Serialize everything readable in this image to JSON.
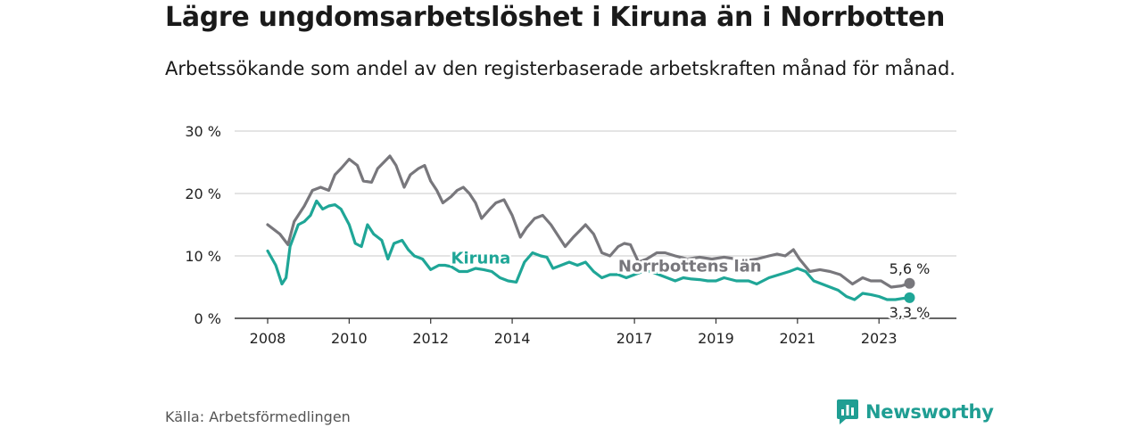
{
  "header": {
    "title": "Lägre ungdomsarbetslöshet i Kiruna än i Norrbotten",
    "subtitle": "Arbetssökande som andel av den registerbaserade arbetskraften månad för månad."
  },
  "footer": {
    "source": "Källa: Arbetsförmedlingen",
    "brand": "Newsworthy"
  },
  "colors": {
    "kiruna": "#1fa697",
    "norrbotten": "#78777c",
    "grid": "#d4d4d4",
    "axis": "#333333",
    "brand": "#1f9e93"
  },
  "chart_data": {
    "type": "line",
    "title": "Lägre ungdomsarbetslöshet i Kiruna än i Norrbotten",
    "subtitle": "Arbetssökande som andel av den registerbaserade arbetskraften månad för månad.",
    "xlabel": "",
    "ylabel": "",
    "xlim": [
      2008,
      2024.9
    ],
    "ylim": [
      0,
      30
    ],
    "y_ticks": [
      0,
      10,
      20,
      30
    ],
    "y_tick_labels": [
      "0 %",
      "10 %",
      "20 %",
      "30 %"
    ],
    "x_ticks": [
      2008,
      2010,
      2012,
      2014,
      2017,
      2019,
      2021,
      2023
    ],
    "x_tick_labels": [
      "2008",
      "2010",
      "2012",
      "2014",
      "2017",
      "2019",
      "2021",
      "2023"
    ],
    "grid": true,
    "series": [
      {
        "name": "Norrbottens län",
        "label": "Norrbottens län",
        "end_label": "5,6 %",
        "x": [
          2008.0,
          2008.3,
          2008.5,
          2008.65,
          2008.9,
          2009.1,
          2009.3,
          2009.5,
          2009.65,
          2009.8,
          2010.0,
          2010.2,
          2010.35,
          2010.55,
          2010.7,
          2010.85,
          2011.0,
          2011.15,
          2011.35,
          2011.5,
          2011.7,
          2011.85,
          2012.0,
          2012.15,
          2012.3,
          2012.5,
          2012.65,
          2012.8,
          2012.95,
          2013.1,
          2013.25,
          2013.45,
          2013.6,
          2013.8,
          2014.0,
          2014.2,
          2014.35,
          2014.55,
          2014.75,
          2014.95,
          2015.15,
          2015.3,
          2015.5,
          2015.65,
          2015.8,
          2016.0,
          2016.2,
          2016.4,
          2016.6,
          2016.75,
          2016.9,
          2017.1,
          2017.3,
          2017.55,
          2017.75,
          2018.0,
          2018.3,
          2018.6,
          2018.9,
          2019.2,
          2019.5,
          2019.8,
          2020.0,
          2020.3,
          2020.5,
          2020.7,
          2020.9,
          2021.05,
          2021.3,
          2021.55,
          2021.8,
          2022.05,
          2022.35,
          2022.6,
          2022.8,
          2023.05,
          2023.3,
          2023.55,
          2023.75
        ],
        "y": [
          15.0,
          13.5,
          11.8,
          15.5,
          18.0,
          20.5,
          21.0,
          20.5,
          23.0,
          24.0,
          25.5,
          24.5,
          22.0,
          21.8,
          24.0,
          25.0,
          26.0,
          24.5,
          21.0,
          23.0,
          24.0,
          24.5,
          22.0,
          20.5,
          18.5,
          19.5,
          20.5,
          21.0,
          20.0,
          18.5,
          16.0,
          17.5,
          18.5,
          19.0,
          16.5,
          13.0,
          14.5,
          16.0,
          16.5,
          15.0,
          13.0,
          11.5,
          13.0,
          14.0,
          15.0,
          13.5,
          10.5,
          10.0,
          11.5,
          12.0,
          11.8,
          9.0,
          9.5,
          10.5,
          10.5,
          10.0,
          9.5,
          9.8,
          9.5,
          9.8,
          9.5,
          9.3,
          9.5,
          10.0,
          10.3,
          10.0,
          11.0,
          9.5,
          7.5,
          7.8,
          7.5,
          7.0,
          5.5,
          6.5,
          6.0,
          6.0,
          5.0,
          5.2,
          5.6
        ]
      },
      {
        "name": "Kiruna",
        "label": "Kiruna",
        "end_label": "3,3 %",
        "x": [
          2008.0,
          2008.2,
          2008.35,
          2008.45,
          2008.55,
          2008.75,
          2008.9,
          2009.05,
          2009.2,
          2009.35,
          2009.5,
          2009.65,
          2009.8,
          2010.0,
          2010.15,
          2010.3,
          2010.45,
          2010.6,
          2010.8,
          2010.95,
          2011.1,
          2011.3,
          2011.45,
          2011.6,
          2011.8,
          2012.0,
          2012.2,
          2012.35,
          2012.5,
          2012.7,
          2012.9,
          2013.1,
          2013.3,
          2013.5,
          2013.7,
          2013.9,
          2014.1,
          2014.3,
          2014.5,
          2014.7,
          2014.85,
          2015.0,
          2015.2,
          2015.4,
          2015.6,
          2015.8,
          2016.0,
          2016.2,
          2016.4,
          2016.6,
          2016.8,
          2017.0,
          2017.2,
          2017.4,
          2017.6,
          2017.8,
          2018.0,
          2018.2,
          2018.4,
          2018.6,
          2018.8,
          2019.0,
          2019.2,
          2019.5,
          2019.8,
          2020.0,
          2020.3,
          2020.55,
          2020.8,
          2021.0,
          2021.2,
          2021.4,
          2021.6,
          2021.8,
          2022.0,
          2022.2,
          2022.4,
          2022.6,
          2022.8,
          2023.0,
          2023.2,
          2023.4,
          2023.6,
          2023.75
        ],
        "y": [
          10.8,
          8.5,
          5.5,
          6.5,
          11.5,
          15.0,
          15.5,
          16.5,
          18.8,
          17.5,
          18.0,
          18.2,
          17.5,
          15.0,
          12.0,
          11.5,
          15.0,
          13.5,
          12.5,
          9.5,
          12.0,
          12.5,
          11.0,
          10.0,
          9.5,
          7.8,
          8.5,
          8.5,
          8.3,
          7.5,
          7.5,
          8.0,
          7.8,
          7.5,
          6.5,
          6.0,
          5.8,
          9.0,
          10.5,
          10.0,
          9.8,
          8.0,
          8.5,
          9.0,
          8.5,
          9.0,
          7.5,
          6.5,
          7.0,
          7.0,
          6.5,
          7.0,
          7.5,
          7.5,
          7.0,
          6.5,
          6.0,
          6.5,
          6.3,
          6.2,
          6.0,
          6.0,
          6.5,
          6.0,
          6.0,
          5.5,
          6.5,
          7.0,
          7.5,
          8.0,
          7.5,
          6.0,
          5.5,
          5.0,
          4.5,
          3.5,
          3.0,
          4.0,
          3.8,
          3.5,
          3.0,
          3.0,
          3.2,
          3.3
        ]
      }
    ]
  }
}
